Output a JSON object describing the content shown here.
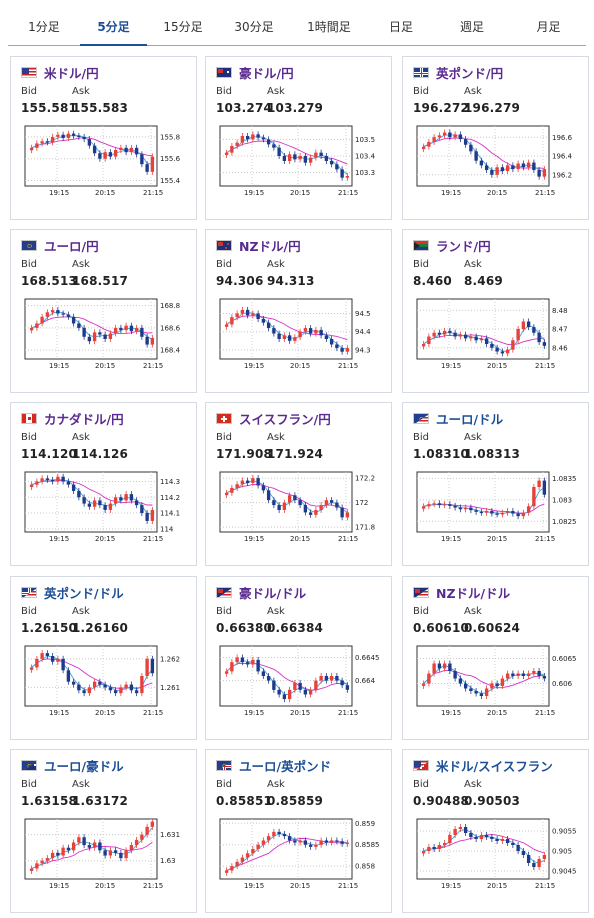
{
  "tabs": [
    {
      "label": "1分足"
    },
    {
      "label": "5分足",
      "active": true
    },
    {
      "label": "15分足"
    },
    {
      "label": "30分足"
    },
    {
      "label": "1時間足"
    },
    {
      "label": "日足"
    },
    {
      "label": "週足"
    },
    {
      "label": "月足"
    }
  ],
  "labels": {
    "bid": "Bid",
    "ask": "Ask"
  },
  "colors": {
    "title_purple": "#5a2a8e",
    "title_blue": "#1c4f96",
    "up": "#e8403a",
    "down": "#1d3a8c",
    "ma_short": "#47a3d8",
    "ma_long": "#d633c9"
  },
  "cards": [
    {
      "pair": "米ドル/円",
      "color": "purple",
      "flag": "us",
      "bid": "155.581",
      "ask": "155.583",
      "chart_data": {
        "type": "candlestick",
        "x_ticks": [
          "19:15",
          "20:15",
          "21:15"
        ],
        "y_ticks": [
          "155.8",
          "155.6",
          "155.4"
        ],
        "ylim": [
          155.35,
          155.9
        ],
        "series": [
          155.7,
          155.74,
          155.76,
          155.75,
          155.8,
          155.82,
          155.79,
          155.83,
          155.81,
          155.8,
          155.78,
          155.72,
          155.65,
          155.6,
          155.66,
          155.62,
          155.68,
          155.7,
          155.66,
          155.7,
          155.64,
          155.55,
          155.48,
          155.62
        ]
      }
    },
    {
      "pair": "豪ドル/円",
      "color": "purple",
      "flag": "au",
      "bid": "103.274",
      "ask": "103.279",
      "chart_data": {
        "type": "candlestick",
        "x_ticks": [
          "19:15",
          "20:15",
          "21:15"
        ],
        "y_ticks": [
          "103.5",
          "103.4",
          "103.3"
        ],
        "ylim": [
          103.22,
          103.58
        ],
        "series": [
          103.42,
          103.46,
          103.48,
          103.52,
          103.5,
          103.53,
          103.51,
          103.5,
          103.47,
          103.45,
          103.4,
          103.37,
          103.41,
          103.38,
          103.4,
          103.36,
          103.39,
          103.42,
          103.4,
          103.37,
          103.35,
          103.32,
          103.27,
          103.28
        ]
      }
    },
    {
      "pair": "英ポンド/円",
      "color": "purple",
      "flag": "gb",
      "bid": "196.272",
      "ask": "196.279",
      "chart_data": {
        "type": "candlestick",
        "x_ticks": [
          "19:15",
          "20:15",
          "21:15"
        ],
        "y_ticks": [
          "196.6",
          "196.4",
          "196.2"
        ],
        "ylim": [
          196.08,
          196.72
        ],
        "series": [
          196.5,
          196.55,
          196.6,
          196.62,
          196.65,
          196.6,
          196.63,
          196.58,
          196.52,
          196.45,
          196.35,
          196.3,
          196.25,
          196.2,
          196.28,
          196.24,
          196.3,
          196.26,
          196.32,
          196.28,
          196.33,
          196.25,
          196.18,
          196.26
        ]
      }
    },
    {
      "pair": "ユーロ/円",
      "color": "purple",
      "flag": "eu",
      "bid": "168.513",
      "ask": "168.517",
      "chart_data": {
        "type": "candlestick",
        "x_ticks": [
          "19:15",
          "20:15",
          "21:15"
        ],
        "y_ticks": [
          "168.8",
          "168.6",
          "168.4"
        ],
        "ylim": [
          168.32,
          168.86
        ],
        "series": [
          168.6,
          168.64,
          168.7,
          168.74,
          168.76,
          168.73,
          168.72,
          168.7,
          168.64,
          168.6,
          168.52,
          168.48,
          168.56,
          168.54,
          168.5,
          168.55,
          168.6,
          168.58,
          168.62,
          168.57,
          168.6,
          168.52,
          168.45,
          168.51
        ]
      }
    },
    {
      "pair": "NZドル/円",
      "color": "purple",
      "flag": "nz",
      "bid": "94.306",
      "ask": "94.313",
      "chart_data": {
        "type": "candlestick",
        "x_ticks": [
          "19:15",
          "20:15",
          "21:15"
        ],
        "y_ticks": [
          "94.5",
          "94.4",
          "94.3"
        ],
        "ylim": [
          94.25,
          94.58
        ],
        "series": [
          94.44,
          94.48,
          94.5,
          94.52,
          94.49,
          94.5,
          94.47,
          94.45,
          94.42,
          94.39,
          94.36,
          94.38,
          94.35,
          94.37,
          94.4,
          94.42,
          94.39,
          94.41,
          94.38,
          94.36,
          94.33,
          94.31,
          94.29,
          94.31
        ]
      }
    },
    {
      "pair": "ランド/円",
      "color": "purple",
      "flag": "za",
      "bid": "8.460",
      "ask": "8.469",
      "chart_data": {
        "type": "candlestick",
        "x_ticks": [
          "19:15",
          "20:15",
          "21:15"
        ],
        "y_ticks": [
          "8.48",
          "8.47",
          "8.46"
        ],
        "ylim": [
          8.454,
          8.486
        ],
        "series": [
          8.462,
          8.466,
          8.468,
          8.467,
          8.469,
          8.468,
          8.466,
          8.467,
          8.465,
          8.466,
          8.464,
          8.465,
          8.462,
          8.46,
          8.458,
          8.457,
          8.459,
          8.464,
          8.47,
          8.474,
          8.471,
          8.468,
          8.463,
          8.461
        ]
      }
    },
    {
      "pair": "カナダドル/円",
      "color": "purple",
      "flag": "ca",
      "bid": "114.120",
      "ask": "114.126",
      "chart_data": {
        "type": "candlestick",
        "x_ticks": [
          "19:15",
          "20:15",
          "21:15"
        ],
        "y_ticks": [
          "114.3",
          "114.2",
          "114.1",
          "114"
        ],
        "ylim": [
          113.98,
          114.36
        ],
        "series": [
          114.28,
          114.3,
          114.32,
          114.31,
          114.3,
          114.33,
          114.3,
          114.28,
          114.24,
          114.2,
          114.16,
          114.14,
          114.18,
          114.15,
          114.12,
          114.16,
          114.2,
          114.18,
          114.22,
          114.18,
          114.15,
          114.1,
          114.05,
          114.12
        ]
      }
    },
    {
      "pair": "スイスフラン/円",
      "color": "purple",
      "flag": "ch",
      "bid": "171.908",
      "ask": "171.924",
      "chart_data": {
        "type": "candlestick",
        "x_ticks": [
          "19:15",
          "20:15",
          "21:15"
        ],
        "y_ticks": [
          "172.2",
          "172",
          "171.8"
        ],
        "ylim": [
          171.76,
          172.25
        ],
        "series": [
          172.08,
          172.12,
          172.15,
          172.18,
          172.16,
          172.2,
          172.14,
          172.1,
          172.02,
          171.98,
          171.94,
          172.0,
          172.06,
          172.02,
          171.98,
          171.92,
          171.9,
          171.94,
          171.98,
          172.02,
          172.0,
          171.96,
          171.88,
          171.92
        ]
      }
    },
    {
      "pair": "ユーロ/ドル",
      "color": "blue",
      "flag": "euus",
      "bid": "1.08310",
      "ask": "1.08313",
      "chart_data": {
        "type": "candlestick",
        "x_ticks": [
          "19:15",
          "20:15",
          "21:15"
        ],
        "y_ticks": [
          "1.0835",
          "1.083",
          "1.0825"
        ],
        "ylim": [
          1.08225,
          1.08365
        ],
        "series": [
          1.08285,
          1.0829,
          1.08292,
          1.08288,
          1.0829,
          1.08286,
          1.08282,
          1.08278,
          1.08282,
          1.08276,
          1.08272,
          1.0827,
          1.08274,
          1.08268,
          1.08266,
          1.0827,
          1.08274,
          1.08268,
          1.08262,
          1.0827,
          1.08285,
          1.0833,
          1.08345,
          1.08312
        ]
      }
    },
    {
      "pair": "英ポンド/ドル",
      "color": "blue",
      "flag": "gbus",
      "bid": "1.26150",
      "ask": "1.26160",
      "chart_data": {
        "type": "candlestick",
        "x_ticks": [
          "19:15",
          "20:15",
          "21:15"
        ],
        "y_ticks": [
          "1.262",
          "1.261"
        ],
        "ylim": [
          1.26035,
          1.26245
        ],
        "series": [
          1.2617,
          1.262,
          1.2622,
          1.2621,
          1.2619,
          1.262,
          1.2616,
          1.2612,
          1.2611,
          1.2609,
          1.2608,
          1.261,
          1.2612,
          1.2611,
          1.261,
          1.2609,
          1.2608,
          1.261,
          1.2611,
          1.2609,
          1.2608,
          1.2614,
          1.262,
          1.2615
        ]
      }
    },
    {
      "pair": "豪ドル/ドル",
      "color": "purple",
      "flag": "auus",
      "bid": "0.66380",
      "ask": "0.66384",
      "chart_data": {
        "type": "candlestick",
        "x_ticks": [
          "19:15",
          "20:15",
          "21:15"
        ],
        "y_ticks": [
          "0.6645",
          "0.664"
        ],
        "ylim": [
          0.66345,
          0.66475
        ],
        "series": [
          0.6642,
          0.6644,
          0.6645,
          0.6644,
          0.66435,
          0.66445,
          0.6642,
          0.6641,
          0.664,
          0.6638,
          0.6637,
          0.6636,
          0.6638,
          0.66395,
          0.6638,
          0.6637,
          0.6638,
          0.664,
          0.6641,
          0.664,
          0.6641,
          0.664,
          0.6639,
          0.6638
        ]
      }
    },
    {
      "pair": "NZドル/ドル",
      "color": "purple",
      "flag": "nzus",
      "bid": "0.60610",
      "ask": "0.60624",
      "chart_data": {
        "type": "candlestick",
        "x_ticks": [
          "19:15",
          "20:15",
          "21:15"
        ],
        "y_ticks": [
          "0.6065",
          "0.606"
        ],
        "ylim": [
          0.60555,
          0.60675
        ],
        "series": [
          0.606,
          0.6062,
          0.6064,
          0.6063,
          0.6064,
          0.60625,
          0.6061,
          0.606,
          0.6059,
          0.60585,
          0.6058,
          0.60575,
          0.6059,
          0.606,
          0.60595,
          0.6061,
          0.6062,
          0.60615,
          0.6062,
          0.60615,
          0.6062,
          0.60625,
          0.60615,
          0.6061
        ]
      }
    },
    {
      "pair": "ユーロ/豪ドル",
      "color": "blue",
      "flag": "euau",
      "bid": "1.63158",
      "ask": "1.63172",
      "chart_data": {
        "type": "candlestick",
        "x_ticks": [
          "19:15",
          "20:15",
          "21:15"
        ],
        "y_ticks": [
          "1.631",
          "1.63"
        ],
        "ylim": [
          1.6293,
          1.6316
        ],
        "series": [
          1.6297,
          1.6299,
          1.63,
          1.6301,
          1.6303,
          1.6302,
          1.6305,
          1.6304,
          1.6307,
          1.6309,
          1.6306,
          1.6305,
          1.6307,
          1.6304,
          1.6302,
          1.6304,
          1.6303,
          1.6301,
          1.6304,
          1.6306,
          1.6308,
          1.631,
          1.6313,
          1.6315
        ]
      }
    },
    {
      "pair": "ユーロ/英ポンド",
      "color": "blue",
      "flag": "eugb",
      "bid": "0.85851",
      "ask": "0.85859",
      "chart_data": {
        "type": "candlestick",
        "x_ticks": [
          "19:15",
          "20:15",
          "21:15"
        ],
        "y_ticks": [
          "0.859",
          "0.8585",
          "0.858"
        ],
        "ylim": [
          0.8577,
          0.8591
        ],
        "series": [
          0.8579,
          0.858,
          0.8581,
          0.8582,
          0.8583,
          0.8584,
          0.8585,
          0.8586,
          0.8587,
          0.8588,
          0.85875,
          0.8587,
          0.8586,
          0.85855,
          0.8586,
          0.8585,
          0.85845,
          0.8585,
          0.8586,
          0.85855,
          0.8586,
          0.85858,
          0.85852,
          0.85855
        ]
      }
    },
    {
      "pair": "米ドル/スイスフラン",
      "color": "blue",
      "flag": "usch",
      "bid": "0.90488",
      "ask": "0.90503",
      "chart_data": {
        "type": "candlestick",
        "x_ticks": [
          "19:15",
          "20:15",
          "21:15"
        ],
        "y_ticks": [
          "0.9055",
          "0.905",
          "0.9045"
        ],
        "ylim": [
          0.9043,
          0.9058
        ],
        "series": [
          0.905,
          0.9051,
          0.90505,
          0.90515,
          0.9052,
          0.9054,
          0.90555,
          0.9056,
          0.90545,
          0.90535,
          0.9053,
          0.9054,
          0.90535,
          0.9053,
          0.90525,
          0.9053,
          0.9052,
          0.90515,
          0.905,
          0.9049,
          0.9047,
          0.9046,
          0.9048,
          0.9049
        ]
      }
    }
  ]
}
